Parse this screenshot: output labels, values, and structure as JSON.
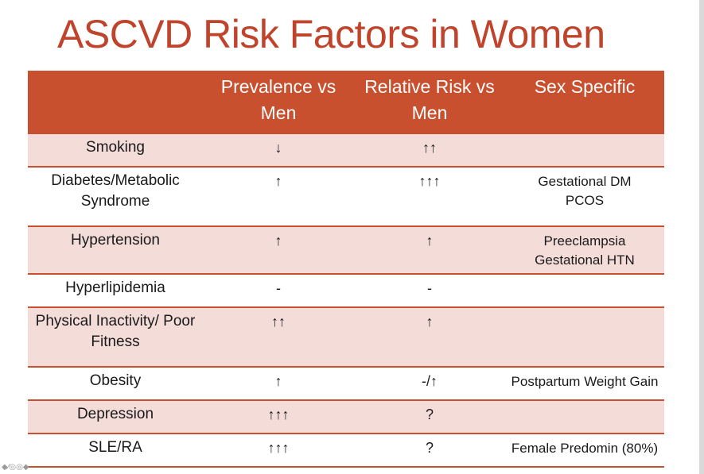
{
  "slide": {
    "title": "ASCVD Risk Factors in Women",
    "accent_color": "#c8502e",
    "title_color": "#c0432b",
    "row_shade_color": "#f4dcd9"
  },
  "table": {
    "headers": [
      "",
      "Prevalence vs Men",
      "Relative Risk vs Men",
      "Sex Specific"
    ],
    "rows": [
      {
        "factor": "Smoking",
        "prevalence": "↓",
        "relative_risk": "↑↑",
        "sex_specific": [
          "",
          ""
        ]
      },
      {
        "factor": "Diabetes/Metabolic Syndrome",
        "prevalence": "↑",
        "relative_risk": "↑↑↑",
        "sex_specific": [
          "Gestational DM",
          "PCOS"
        ]
      },
      {
        "factor": "Hypertension",
        "prevalence": "↑",
        "relative_risk": "↑",
        "sex_specific": [
          "Preeclampsia",
          "Gestational HTN"
        ]
      },
      {
        "factor": "Hyperlipidemia",
        "prevalence": "-",
        "relative_risk": "-",
        "sex_specific": [
          "",
          ""
        ]
      },
      {
        "factor": "Physical Inactivity/ Poor Fitness",
        "prevalence": "↑↑",
        "relative_risk": "↑",
        "sex_specific": [
          "",
          ""
        ]
      },
      {
        "factor": "Obesity",
        "prevalence": "↑",
        "relative_risk": "-/↑",
        "sex_specific": [
          "Postpartum Weight Gain",
          ""
        ]
      },
      {
        "factor": "Depression",
        "prevalence": "↑↑↑",
        "relative_risk": "?",
        "sex_specific": [
          "",
          ""
        ]
      },
      {
        "factor": "SLE/RA",
        "prevalence": "↑↑↑",
        "relative_risk": "?",
        "sex_specific": [
          "Female Predomin (80%)",
          ""
        ]
      }
    ]
  },
  "toolbar": {
    "icons": "◆⁄◎◎◆"
  }
}
